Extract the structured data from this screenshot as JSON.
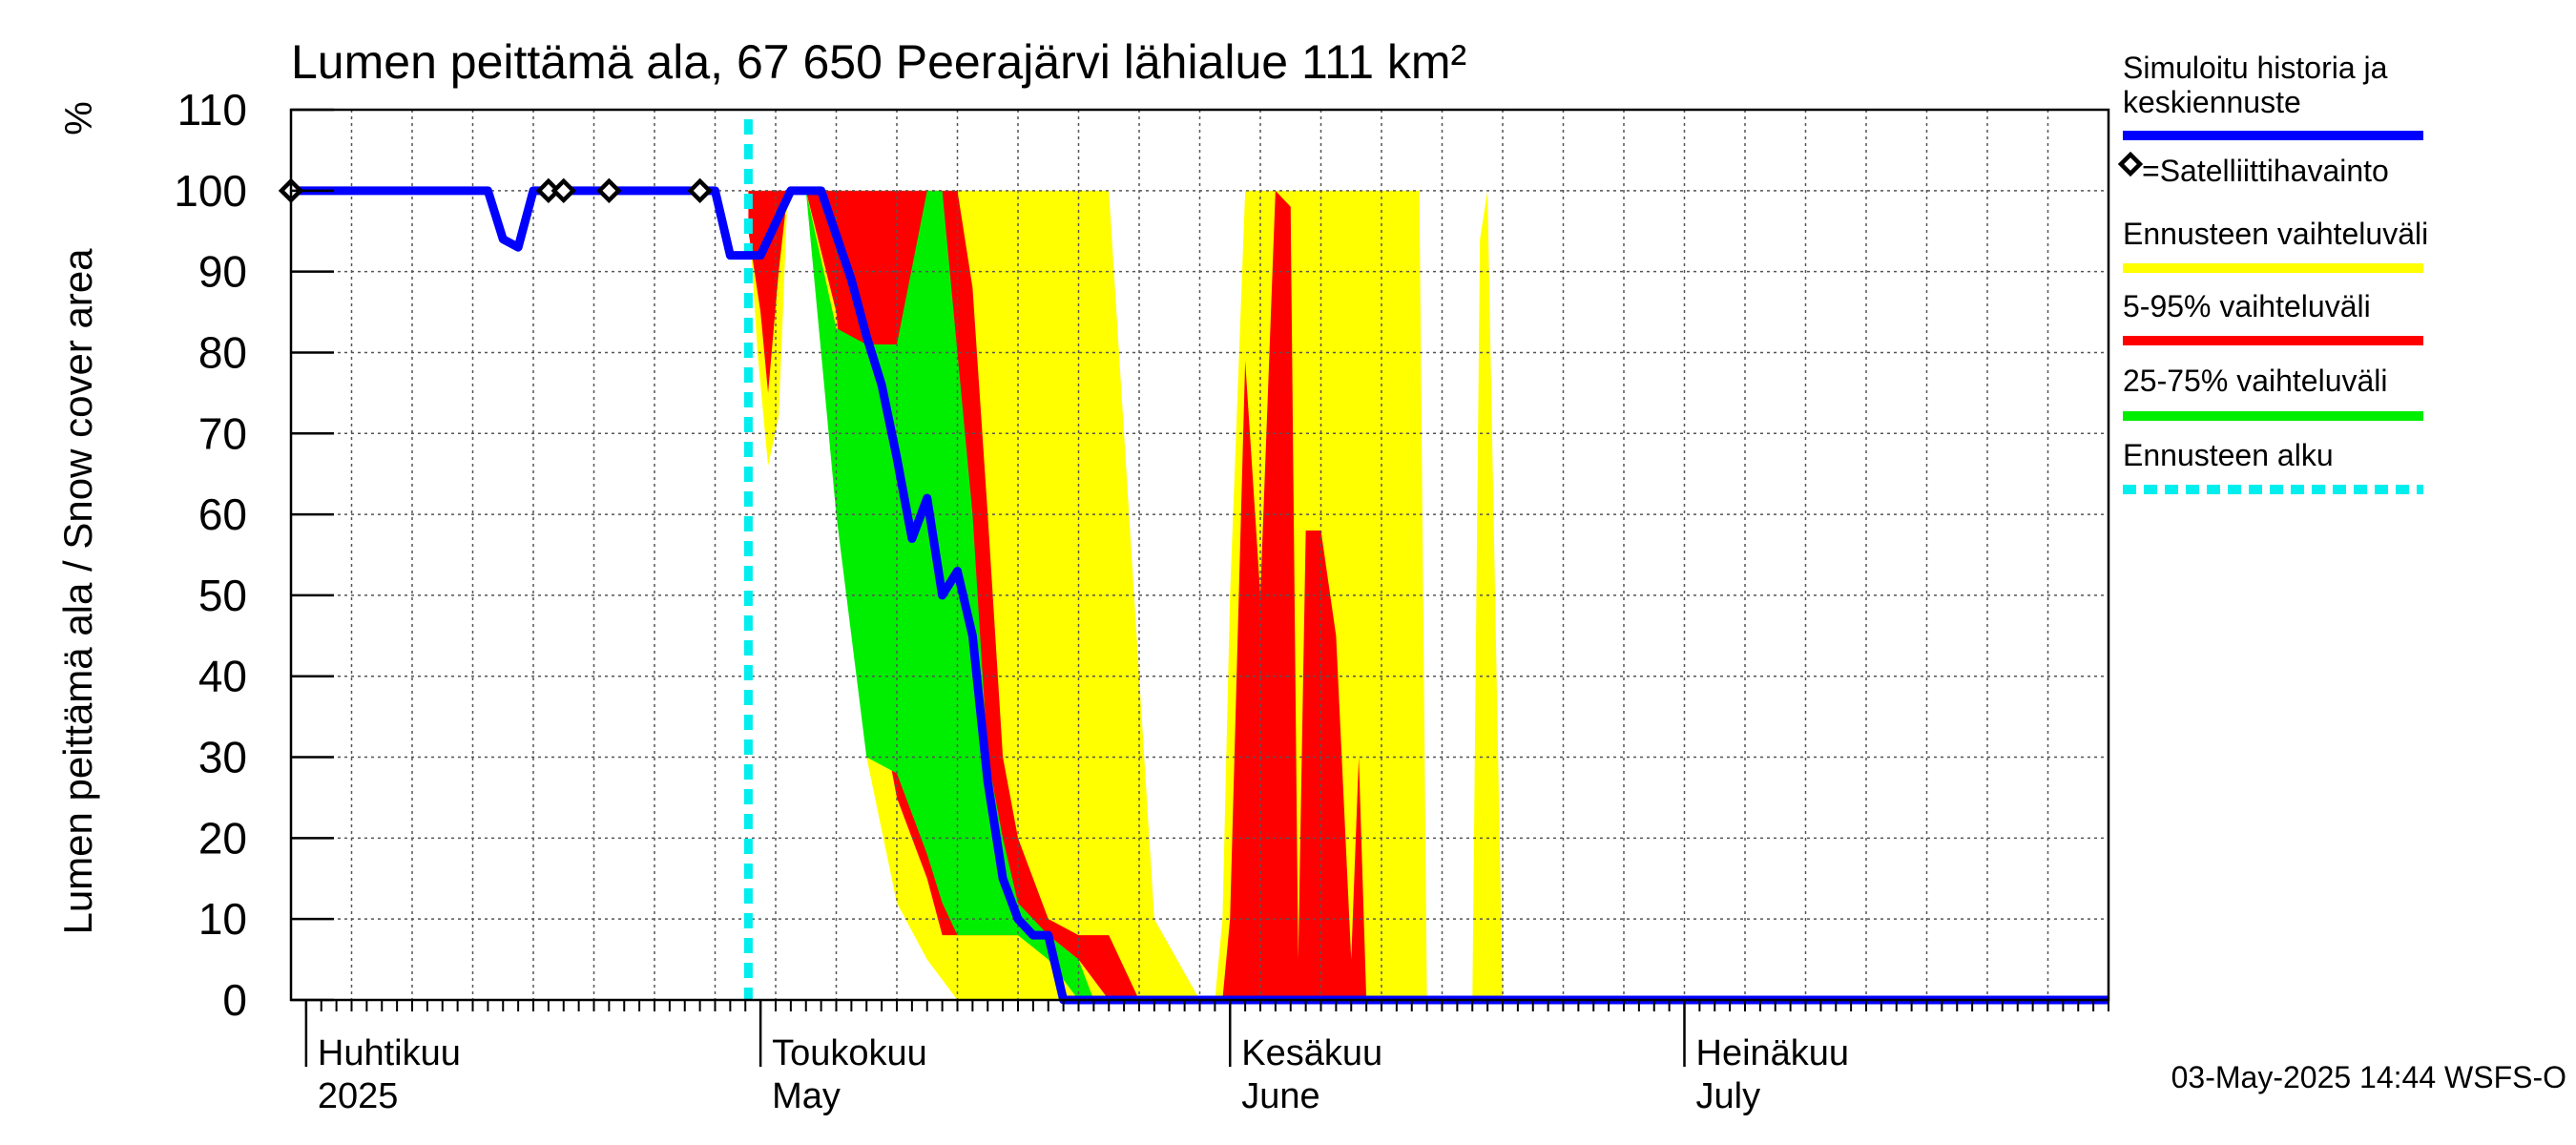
{
  "chart_data": {
    "type": "area",
    "title": "Lumen peittämä ala, 67 650 Peerajärvi lähialue 111 km²",
    "ylabel": "Lumen peittämä ala / Snow cover area",
    "yunit": "%",
    "ylim": [
      0,
      110
    ],
    "yticks": [
      0,
      10,
      20,
      30,
      40,
      50,
      60,
      70,
      80,
      90,
      100,
      110
    ],
    "xlim": [
      0,
      120
    ],
    "x_unit": "days since 31-Mar-2025",
    "months": [
      {
        "fi": "Huhtikuu",
        "en": "2025",
        "start": 1
      },
      {
        "fi": "Toukokuu",
        "en": "May",
        "start": 31
      },
      {
        "fi": "Kesäkuu",
        "en": "June",
        "start": 62
      },
      {
        "fi": "Heinäkuu",
        "en": "July",
        "start": 92
      }
    ],
    "forecast_start": 30.2,
    "series": [
      {
        "name": "Ennusteen vaihteluväli",
        "role": "band",
        "color": "#ffff00",
        "x": [
          30.2,
          30.8,
          31.5,
          32.2,
          32.8,
          34,
          36,
          38,
          40,
          42,
          44,
          46,
          47,
          48,
          49,
          50,
          52,
          54,
          57,
          60,
          61,
          61.5,
          62,
          63,
          65,
          67,
          69,
          70,
          71,
          72,
          73,
          74,
          74.5,
          75,
          77,
          78,
          78.5,
          79,
          80,
          120
        ],
        "upper": [
          100,
          100,
          100,
          100,
          100,
          100,
          100,
          100,
          100,
          100,
          100,
          100,
          100,
          100,
          100,
          100,
          100,
          100,
          10,
          0,
          0,
          10,
          50,
          100,
          100,
          100,
          100,
          100,
          100,
          100,
          100,
          100,
          100,
          0,
          0,
          0,
          94,
          100,
          0,
          0
        ],
        "lower": [
          98,
          80,
          66,
          72,
          100,
          100,
          75,
          30,
          12,
          5,
          0,
          0,
          0,
          0,
          0,
          0,
          0,
          0,
          0,
          0,
          0,
          0,
          0,
          0,
          0,
          0,
          0,
          0,
          0,
          0,
          0,
          0,
          0,
          0,
          0,
          0,
          0,
          0,
          0,
          0
        ]
      },
      {
        "name": "5-95% vaihteluväli",
        "role": "band",
        "color": "#ff0000",
        "x": [
          30.2,
          31,
          31.5,
          32.2,
          32.8,
          34,
          36,
          38,
          40,
          42,
          43,
          44,
          45,
          46,
          47,
          48,
          50,
          52,
          54,
          56,
          57,
          59,
          60,
          61,
          61.5,
          62,
          63,
          64,
          65,
          66,
          66.5,
          67,
          68,
          69,
          70,
          70.5,
          71,
          72,
          120
        ],
        "upper": [
          100,
          100,
          100,
          100,
          100,
          100,
          100,
          100,
          100,
          100,
          100,
          100,
          88,
          60,
          30,
          20,
          10,
          8,
          8,
          0,
          0,
          0,
          0,
          0,
          0,
          10,
          79,
          50,
          100,
          98,
          5,
          58,
          58,
          45,
          5,
          30,
          0,
          0,
          0
        ],
        "lower": [
          95,
          85,
          75,
          90,
          100,
          100,
          85,
          45,
          25,
          15,
          8,
          8,
          8,
          8,
          8,
          8,
          8,
          5,
          0,
          0,
          0,
          0,
          0,
          0,
          0,
          0,
          0,
          0,
          0,
          0,
          0,
          0,
          0,
          0,
          0,
          0,
          0,
          0,
          0
        ]
      },
      {
        "name": "25-75% vaihteluväli",
        "role": "band",
        "color": "#00ee00",
        "x": [
          32.8,
          34,
          36,
          38,
          40,
          42,
          43,
          44,
          45,
          46,
          47,
          48,
          50,
          52,
          53
        ],
        "upper": [
          100,
          100,
          83,
          81,
          81,
          100,
          100,
          80,
          60,
          30,
          20,
          12,
          8,
          5,
          0
        ],
        "lower": [
          100,
          100,
          60,
          30,
          28,
          18,
          12,
          8,
          8,
          8,
          8,
          8,
          5,
          0,
          0
        ]
      },
      {
        "name": "Simuloitu historia ja keskiennuste",
        "role": "line",
        "color": "#0000ff",
        "x": [
          0,
          13,
          14,
          15,
          16,
          17,
          18,
          21,
          26,
          28,
          29,
          31,
          33,
          35,
          37,
          38,
          39,
          40,
          41,
          42,
          43,
          44,
          45,
          46,
          47,
          48,
          49,
          50,
          51,
          120
        ],
        "y": [
          100,
          100,
          94,
          93,
          100,
          100,
          100,
          100,
          100,
          100,
          92,
          92,
          100,
          100,
          89,
          82,
          76,
          67,
          57,
          62,
          50,
          53,
          45,
          27,
          15,
          10,
          8,
          8,
          0,
          0
        ]
      }
    ],
    "satellite_points": {
      "name": "=Satelliittihavainto",
      "x": [
        0,
        17,
        18,
        21,
        27
      ],
      "y": [
        100,
        100,
        100,
        100,
        100
      ]
    },
    "legend": {
      "placement": "right",
      "entries": [
        {
          "label": "Simuloitu historia ja keskiennuste",
          "lines": [
            "Simuloitu historia ja",
            "keskiennuste"
          ],
          "color": "#0000ff",
          "style": "line"
        },
        {
          "label": "=Satelliittihavainto",
          "color": "#000000",
          "style": "diamond"
        },
        {
          "label": "Ennusteen vaihteluväli",
          "color": "#ffff00",
          "style": "line"
        },
        {
          "label": "5-95% vaihteluväli",
          "color": "#ff0000",
          "style": "line"
        },
        {
          "label": "25-75% vaihteluväli",
          "color": "#00ee00",
          "style": "line"
        },
        {
          "label": "Ennusteen alku",
          "color": "#00eeee",
          "style": "dashed"
        }
      ]
    },
    "grid": true,
    "footer": "03-May-2025 14:44 WSFS-O"
  }
}
